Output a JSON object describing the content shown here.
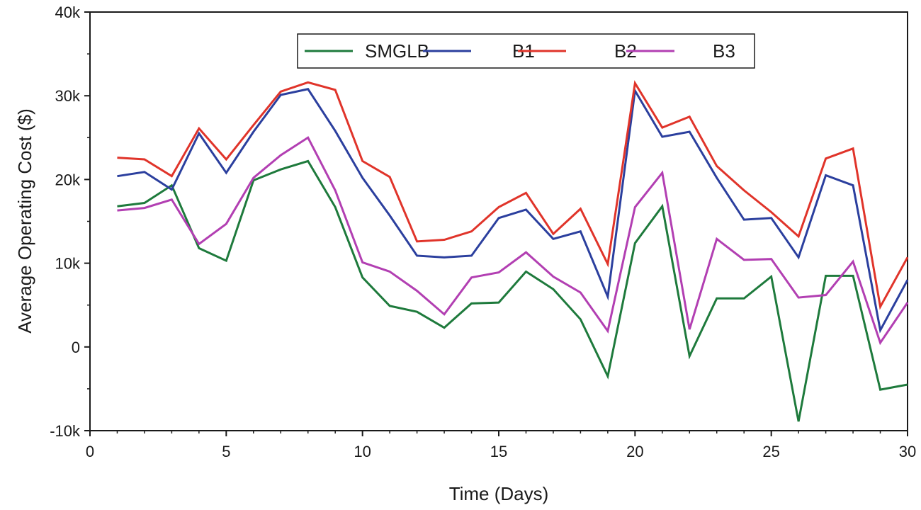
{
  "chart_data": {
    "type": "line",
    "title": "",
    "xlabel": "Time (Days)",
    "ylabel": "Average Operating Cost ($)",
    "xlim": [
      0,
      30
    ],
    "ylim": [
      -10000,
      40000
    ],
    "x_ticks": [
      0,
      5,
      10,
      15,
      20,
      25,
      30
    ],
    "x_tick_labels": [
      "0",
      "5",
      "10",
      "15",
      "20",
      "25",
      "30"
    ],
    "y_ticks": [
      -10000,
      0,
      10000,
      20000,
      30000,
      40000
    ],
    "y_tick_labels": [
      "-10k",
      "0",
      "10k",
      "20k",
      "30k",
      "40k"
    ],
    "grid": false,
    "legend_position": "top-center",
    "x": [
      1,
      2,
      3,
      4,
      5,
      6,
      7,
      8,
      9,
      10,
      11,
      12,
      13,
      14,
      15,
      16,
      17,
      18,
      19,
      20,
      21,
      22,
      23,
      24,
      25,
      26,
      27,
      28,
      29,
      30
    ],
    "series": [
      {
        "name": "SMGLB",
        "color": "#1e7a3c",
        "values": [
          16800,
          17200,
          19300,
          11800,
          10300,
          19900,
          21200,
          22200,
          16700,
          8300,
          4900,
          4200,
          2300,
          5200,
          5300,
          9000,
          6900,
          3300,
          -3500,
          12400,
          16800,
          -1100,
          5800,
          5800,
          8400,
          -8900,
          8500,
          8500,
          -5100,
          -4500
        ]
      },
      {
        "name": "B1",
        "color": "#2b3f9e",
        "values": [
          20400,
          20900,
          18800,
          25500,
          20800,
          25700,
          30100,
          30800,
          25800,
          20200,
          15700,
          10900,
          10700,
          10900,
          15400,
          16400,
          12900,
          13800,
          6000,
          30600,
          25100,
          25700,
          20200,
          15200,
          15400,
          10700,
          20500,
          19300,
          2000,
          8000
        ]
      },
      {
        "name": "B2",
        "color": "#e0342a",
        "values": [
          22600,
          22400,
          20400,
          26100,
          22400,
          26500,
          30500,
          31600,
          30700,
          22200,
          20300,
          12600,
          12800,
          13800,
          16700,
          18400,
          13500,
          16500,
          9900,
          31500,
          26200,
          27500,
          21600,
          18700,
          16100,
          13200,
          22500,
          23700,
          4800,
          10700
        ]
      },
      {
        "name": "B3",
        "color": "#b23fb2",
        "values": [
          16300,
          16600,
          17600,
          12300,
          14700,
          20200,
          22900,
          25000,
          18700,
          10100,
          9000,
          6700,
          3900,
          8300,
          8900,
          11300,
          8400,
          6500,
          1900,
          16700,
          20800,
          2100,
          12900,
          10400,
          10500,
          5900,
          6200,
          10200,
          500,
          5300
        ]
      }
    ]
  }
}
